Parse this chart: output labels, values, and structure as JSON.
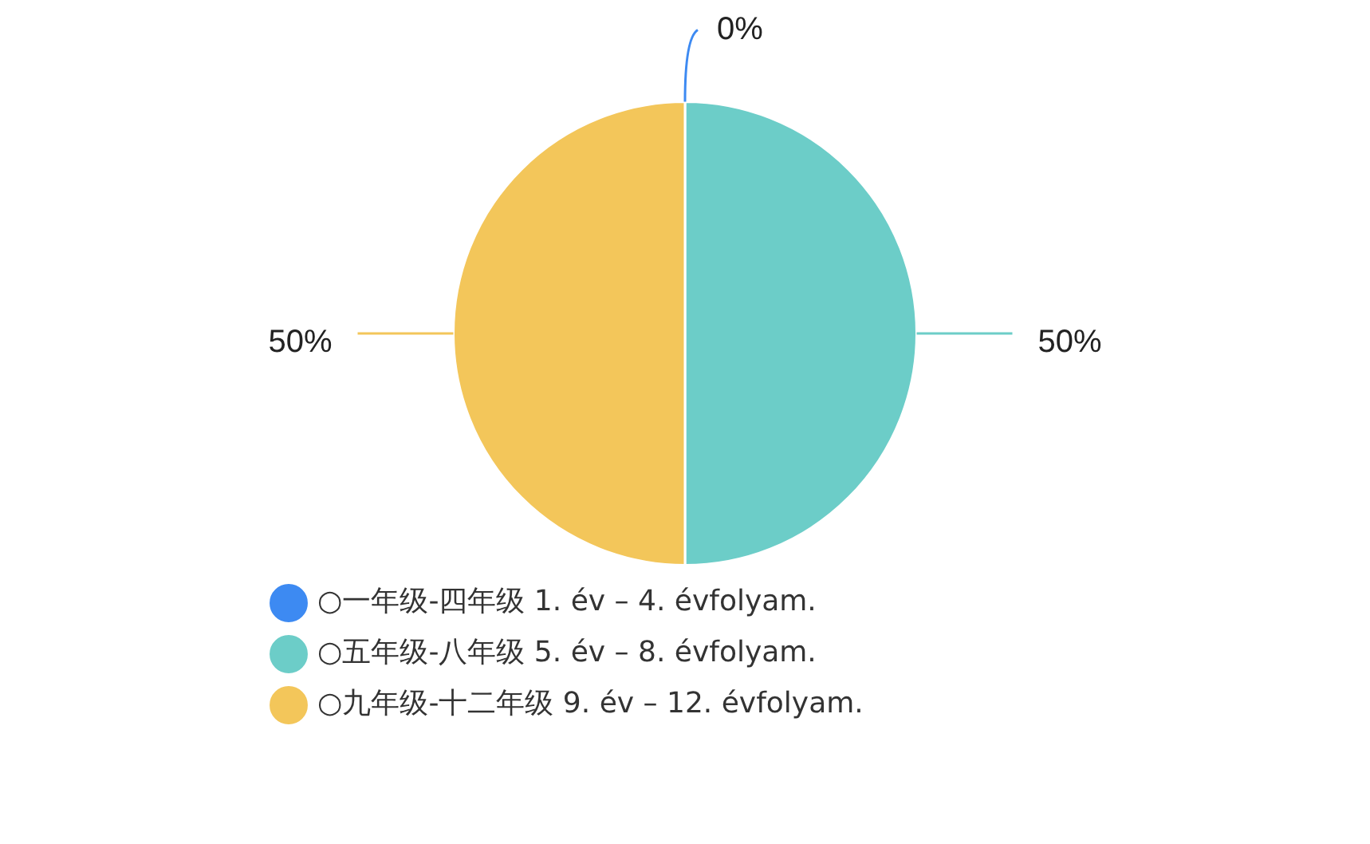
{
  "chart_data": {
    "type": "pie",
    "categories": [
      "○一年级-四年级 1. év – 4. évfolyam.",
      "○五年级-八年级 5. év – 8. évfolyam.",
      "○九年级-十二年级 9. év – 12. évfolyam."
    ],
    "values": [
      0,
      50,
      50
    ],
    "value_labels": [
      "0%",
      "50%",
      "50%"
    ],
    "colors": [
      "#3d8af2",
      "#6ccdc8",
      "#f3c65a"
    ],
    "legend": "bottom"
  }
}
